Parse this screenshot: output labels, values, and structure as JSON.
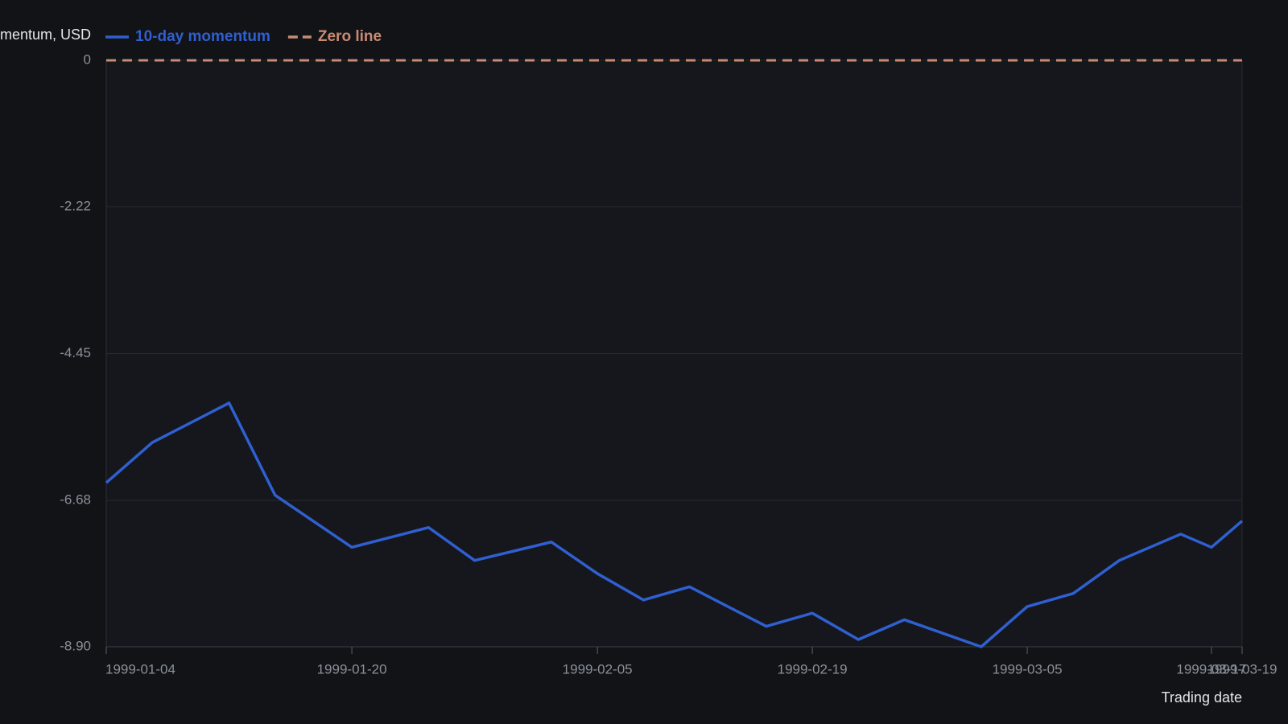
{
  "chart_data": {
    "type": "line",
    "y_label": "Momentum, USD",
    "x_label": "Trading date",
    "x": [
      "1999-01-04",
      "1999-01-07",
      "1999-01-12",
      "1999-01-15",
      "1999-01-20",
      "1999-01-25",
      "1999-01-28",
      "1999-02-02",
      "1999-02-05",
      "1999-02-08",
      "1999-02-11",
      "1999-02-16",
      "1999-02-19",
      "1999-02-22",
      "1999-02-25",
      "1999-03-02",
      "1999-03-05",
      "1999-03-08",
      "1999-03-11",
      "1999-03-15",
      "1999-03-17",
      "1999-03-19"
    ],
    "series": [
      {
        "name": "10-day momentum",
        "color": "#2f5fd0",
        "style": "solid",
        "values": [
          -6.41,
          -5.8,
          -5.2,
          -6.6,
          -7.39,
          -7.09,
          -7.59,
          -7.31,
          -7.79,
          -8.19,
          -7.99,
          -8.59,
          -8.39,
          -8.79,
          -8.49,
          -8.9,
          -8.29,
          -8.09,
          -7.59,
          -7.19,
          -7.39,
          -6.99
        ]
      },
      {
        "name": "Zero line",
        "color": "#c98a73",
        "style": "dashed",
        "values": [
          0,
          0,
          0,
          0,
          0,
          0,
          0,
          0,
          0,
          0,
          0,
          0,
          0,
          0,
          0,
          0,
          0,
          0,
          0,
          0,
          0,
          0
        ]
      }
    ],
    "xlim": [
      "1999-01-04",
      "1999-03-19"
    ],
    "xticks": [
      "1999-01-04",
      "1999-01-20",
      "1999-02-05",
      "1999-02-19",
      "1999-03-05",
      "1999-03-17",
      "1999-03-19"
    ],
    "ylim": [
      -8.9,
      0
    ],
    "yticks": [
      0,
      -2.22,
      -4.45,
      -6.68,
      {
        "value": -8.9,
        "label": "-8.90"
      }
    ],
    "grid": true,
    "legend": "top-left"
  }
}
